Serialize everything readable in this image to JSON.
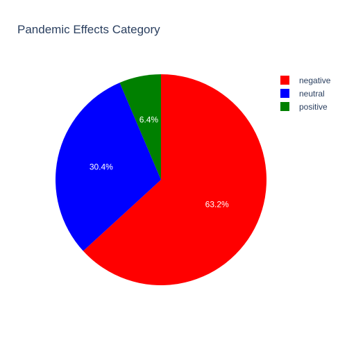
{
  "chart_data": {
    "type": "pie",
    "title": "Pandemic Effects Category",
    "slices": [
      {
        "label": "negative",
        "value": 63.2,
        "text": "63.2%",
        "color": "#ff0000"
      },
      {
        "label": "neutral",
        "value": 30.4,
        "text": "30.4%",
        "color": "#0000ff"
      },
      {
        "label": "positive",
        "value": 6.4,
        "text": "6.4%",
        "color": "#008000"
      }
    ],
    "legend_position": "top-right",
    "direction": "clockwise",
    "start_angle": "12 o'clock"
  }
}
